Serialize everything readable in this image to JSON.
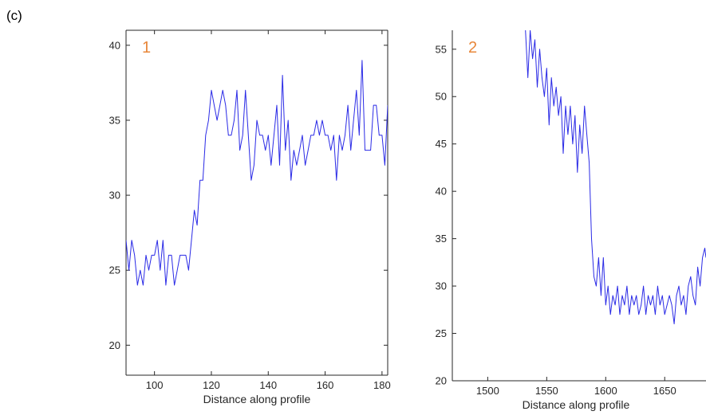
{
  "panel_label": "(c)",
  "colors": {
    "series": "#2a2ae6",
    "plot_number": "#e8873a",
    "axis": "#262626"
  },
  "chart_data": [
    {
      "type": "line",
      "annotation": "1",
      "title": "",
      "xlabel": "Distance along profile",
      "ylabel": "",
      "xlim": [
        90,
        182
      ],
      "ylim": [
        18,
        41
      ],
      "xticks": [
        100,
        120,
        140,
        160,
        180
      ],
      "yticks": [
        20,
        25,
        30,
        35,
        40
      ],
      "grid": false,
      "series": [
        {
          "x": [
            90,
            91,
            92,
            93,
            94,
            95,
            96,
            97,
            98,
            99,
            100,
            101,
            102,
            103,
            104,
            105,
            106,
            107,
            108,
            109,
            110,
            111,
            112,
            113,
            114,
            115,
            116,
            117,
            118,
            119,
            120,
            121,
            122,
            123,
            124,
            125,
            126,
            127,
            128,
            129,
            130,
            131,
            132,
            133,
            134,
            135,
            136,
            137,
            138,
            139,
            140,
            141,
            142,
            143,
            144,
            145,
            146,
            147,
            148,
            149,
            150,
            151,
            152,
            153,
            154,
            155,
            156,
            157,
            158,
            159,
            160,
            161,
            162,
            163,
            164,
            165,
            166,
            167,
            168,
            169,
            170,
            171,
            172,
            173,
            174,
            175,
            176,
            177,
            178,
            179,
            180,
            181,
            182
          ],
          "y": [
            27,
            25,
            27,
            26,
            24,
            25,
            24,
            26,
            25,
            26,
            26,
            27,
            25,
            27,
            24,
            26,
            26,
            24,
            25,
            26,
            26,
            26,
            25,
            27,
            29,
            28,
            31,
            31,
            34,
            35,
            37,
            36,
            35,
            36,
            37,
            36,
            34,
            34,
            35,
            37,
            33,
            34,
            37,
            34,
            31,
            32,
            35,
            34,
            34,
            33,
            34,
            32,
            34,
            36,
            32,
            38,
            33,
            35,
            31,
            33,
            32,
            33,
            34,
            32,
            33,
            34,
            34,
            35,
            34,
            35,
            34,
            34,
            33,
            34,
            31,
            34,
            33,
            34,
            36,
            33,
            35,
            37,
            34,
            39,
            33,
            33,
            33,
            36,
            36,
            34,
            34,
            32,
            36
          ]
        }
      ]
    },
    {
      "type": "line",
      "annotation": "2",
      "title": "",
      "xlabel": "Distance along profile",
      "ylabel": "",
      "xlim": [
        1470,
        1685
      ],
      "ylim": [
        20,
        57
      ],
      "xticks": [
        1500,
        1550,
        1600,
        1650
      ],
      "yticks": [
        20,
        25,
        30,
        35,
        40,
        45,
        50,
        55
      ],
      "grid": false,
      "series": [
        {
          "x": [
            1532,
            1534,
            1536,
            1538,
            1540,
            1542,
            1544,
            1546,
            1548,
            1550,
            1552,
            1554,
            1556,
            1558,
            1560,
            1562,
            1564,
            1566,
            1568,
            1570,
            1572,
            1574,
            1576,
            1578,
            1580,
            1582,
            1584,
            1586,
            1588,
            1590,
            1592,
            1594,
            1596,
            1598,
            1600,
            1602,
            1604,
            1606,
            1608,
            1610,
            1612,
            1614,
            1616,
            1618,
            1620,
            1622,
            1624,
            1626,
            1628,
            1630,
            1632,
            1634,
            1636,
            1638,
            1640,
            1642,
            1644,
            1646,
            1648,
            1650,
            1652,
            1654,
            1656,
            1658,
            1660,
            1662,
            1664,
            1666,
            1668,
            1670,
            1672,
            1674,
            1676,
            1678,
            1680,
            1682,
            1684,
            1685
          ],
          "y": [
            57,
            52,
            57,
            54,
            56,
            51,
            55,
            52,
            50,
            53,
            47,
            52,
            49,
            51,
            48,
            50,
            44,
            49,
            46,
            49,
            45,
            48,
            42,
            47,
            44,
            49,
            46,
            43,
            35,
            31,
            30,
            33,
            29,
            33,
            28,
            30,
            27,
            29,
            28,
            30,
            27,
            29,
            28,
            30,
            27,
            29,
            28,
            29,
            27,
            28,
            30,
            27,
            29,
            28,
            29,
            27,
            30,
            28,
            29,
            27,
            28,
            29,
            28,
            26,
            29,
            30,
            28,
            29,
            27,
            30,
            31,
            29,
            28,
            32,
            30,
            33,
            34,
            33
          ]
        }
      ]
    }
  ]
}
